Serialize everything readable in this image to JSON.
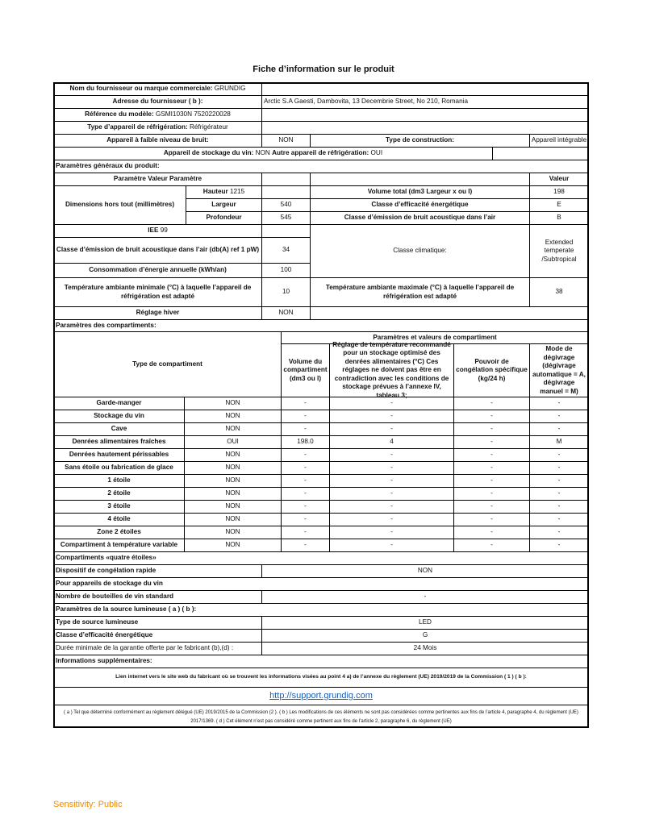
{
  "title": "Fiche d’information sur le produit",
  "general": {
    "supplier_label": "Nom du fournisseur ou marque commerciale:",
    "supplier": "GRUNDIG",
    "address_label": "Adresse du fournisseur ( b ):",
    "address": "Arctic S.A Gaesti, Dambovita, 13 Decembrie Street, No 210, Romania",
    "model_label": "Référence du modèle:",
    "model": "GSMI1030N 7520220028",
    "type_label": "Type d’appareil de réfrigération:",
    "type": "Réfrigérateur",
    "low_noise_label": "Appareil à faible niveau de bruit:",
    "low_noise": "NON",
    "construction_label": "Type de construction:",
    "construction": "Appareil intégrable",
    "wine_label": "Appareil de stockage du vin:",
    "wine": "NON",
    "other_label": "Autre appareil de réfrigération:",
    "other": "OUI"
  },
  "params": {
    "section": "Paramètres généraux du produit:",
    "header_left": "Paramètre  Valeur Paramètre",
    "header_right": "Valeur",
    "dimensions_label": "Dimensions hors tout (millimètres)",
    "height_label": "Hauteur",
    "height": "1215",
    "width_label": "Largeur",
    "width": "540",
    "depth_label": "Profondeur",
    "depth": "545",
    "volume_label": "Volume total (dm3 Largeur x ou l)",
    "volume": "198",
    "energy_class_label": "Classe d’efficacité énergétique",
    "energy_class": "E",
    "noise_class_label": "Classe d’émission de bruit acoustique dans l’air",
    "noise_class": "B",
    "iee_label": "IEE",
    "iee": "99",
    "noise_db_label": "Classe d’émission de bruit acoustique dans l’air (db(A) ref 1 pW)",
    "noise_db": "34",
    "consumption_label": "Consommation d’énergie annuelle (kWh/an)",
    "consumption": "100",
    "climate_label": "Classe climatique:",
    "climate": "Extended temperate /Subtropical",
    "tmin_label": "Température ambiante minimale (°C) à laquelle l’appareil de réfrigération est adapté",
    "tmin": "10",
    "tmax_label": "Température ambiante maximale (°C) à laquelle l’appareil de réfrigération est adapté",
    "tmax": "38",
    "winter_label": "Réglage hiver",
    "winter": "NON"
  },
  "compartments": {
    "section": "Paramètres des compartiments:",
    "type_header": "Type de compartiment",
    "values_header": "Paramètres et valeurs de compartiment",
    "col_volume": "Volume du compartiment (dm3 ou l)",
    "col_temp": "Réglage de température recommandé pour un stockage optimisé des denrées alimentaires (°C) Ces réglages ne doivent pas être en contradiction avec les conditions de stockage prévues à l’annexe IV, tableau 3;",
    "col_freeze": "Pouvoir de congélation spécifique (kg/24 h)",
    "col_defrost": "Mode de dégivrage (dégivrage automatique = A, dégivrage manuel = M)",
    "rows": [
      {
        "name": "Garde-manger",
        "present": "NON",
        "volume": "-",
        "temp": "-",
        "freeze": "-",
        "defrost": "-"
      },
      {
        "name": "Stockage du vin",
        "present": "NON",
        "volume": "-",
        "temp": "-",
        "freeze": "-",
        "defrost": "-"
      },
      {
        "name": "Cave",
        "present": "NON",
        "volume": "-",
        "temp": "-",
        "freeze": "-",
        "defrost": "-"
      },
      {
        "name": "Denrées alimentaires fraîches",
        "present": "OUI",
        "volume": "198.0",
        "temp": "4",
        "freeze": "-",
        "defrost": "M"
      },
      {
        "name": "Denrées hautement périssables",
        "present": "NON",
        "volume": "-",
        "temp": "-",
        "freeze": "-",
        "defrost": "-"
      },
      {
        "name": "Sans étoile ou fabrication de glace",
        "present": "NON",
        "volume": "-",
        "temp": "-",
        "freeze": "-",
        "defrost": "-"
      },
      {
        "name": "1 étoile",
        "present": "NON",
        "volume": "-",
        "temp": "-",
        "freeze": "-",
        "defrost": "-"
      },
      {
        "name": "2 étoile",
        "present": "NON",
        "volume": "-",
        "temp": "-",
        "freeze": "-",
        "defrost": "-"
      },
      {
        "name": "3 étoile",
        "present": "NON",
        "volume": "-",
        "temp": "-",
        "freeze": "-",
        "defrost": "-"
      },
      {
        "name": "4 étoile",
        "present": "NON",
        "volume": "-",
        "temp": "-",
        "freeze": "-",
        "defrost": "-"
      },
      {
        "name": "Zone 2 étoiles",
        "present": "NON",
        "volume": "-",
        "temp": "-",
        "freeze": "-",
        "defrost": "-"
      },
      {
        "name": "Compartiment à température variable",
        "present": "NON",
        "volume": "-",
        "temp": "-",
        "freeze": "-",
        "defrost": "-"
      }
    ]
  },
  "four_star": {
    "section": "Compartiments «quatre étoiles»",
    "fast_freeze_label": "Dispositif de congélation rapide",
    "fast_freeze": "NON"
  },
  "wine": {
    "section": "Pour appareils de stockage du vin",
    "bottles_label": "Nombre de bouteilles de vin standard",
    "bottles": "-"
  },
  "light": {
    "section": "Paramètres de la source lumineuse ( a ) ( b ):",
    "type_label": "Type de source lumineuse",
    "type": "LED",
    "class_label": "Classe d’efficacité énergétique",
    "class": "G"
  },
  "warranty": {
    "label": "Durée minimale de la garantie offerte par le fabricant  (b),(d) :",
    "value": "24 Mois"
  },
  "info": {
    "section": "Informations supplémentaires:",
    "link_label": "Lien internet vers le site web du fabricant où se trouvent les informations visées au point 4 a) de l’annexe du règlement (UE) 2019/2019 de la Commission ( 1 ) ( b ):",
    "url": "http://support.grundig.com",
    "footnote": "( a ) Tel que déterminé conformément au règlement délégué (UE) 2019/2015 de la Commission (2 ).  ( b ) Les modifications de ces éléments ne sont pas considérées comme pertinentes aux fins de l’article 4, paragraphe 4, du règlement (UE) 2017/1369. ( d ) Cet élément n’est pas considéré comme pertinent aux fins de l’article 2, paragraphe 6, du règlement (UE)"
  },
  "sensitivity": "Sensitivity: Public"
}
